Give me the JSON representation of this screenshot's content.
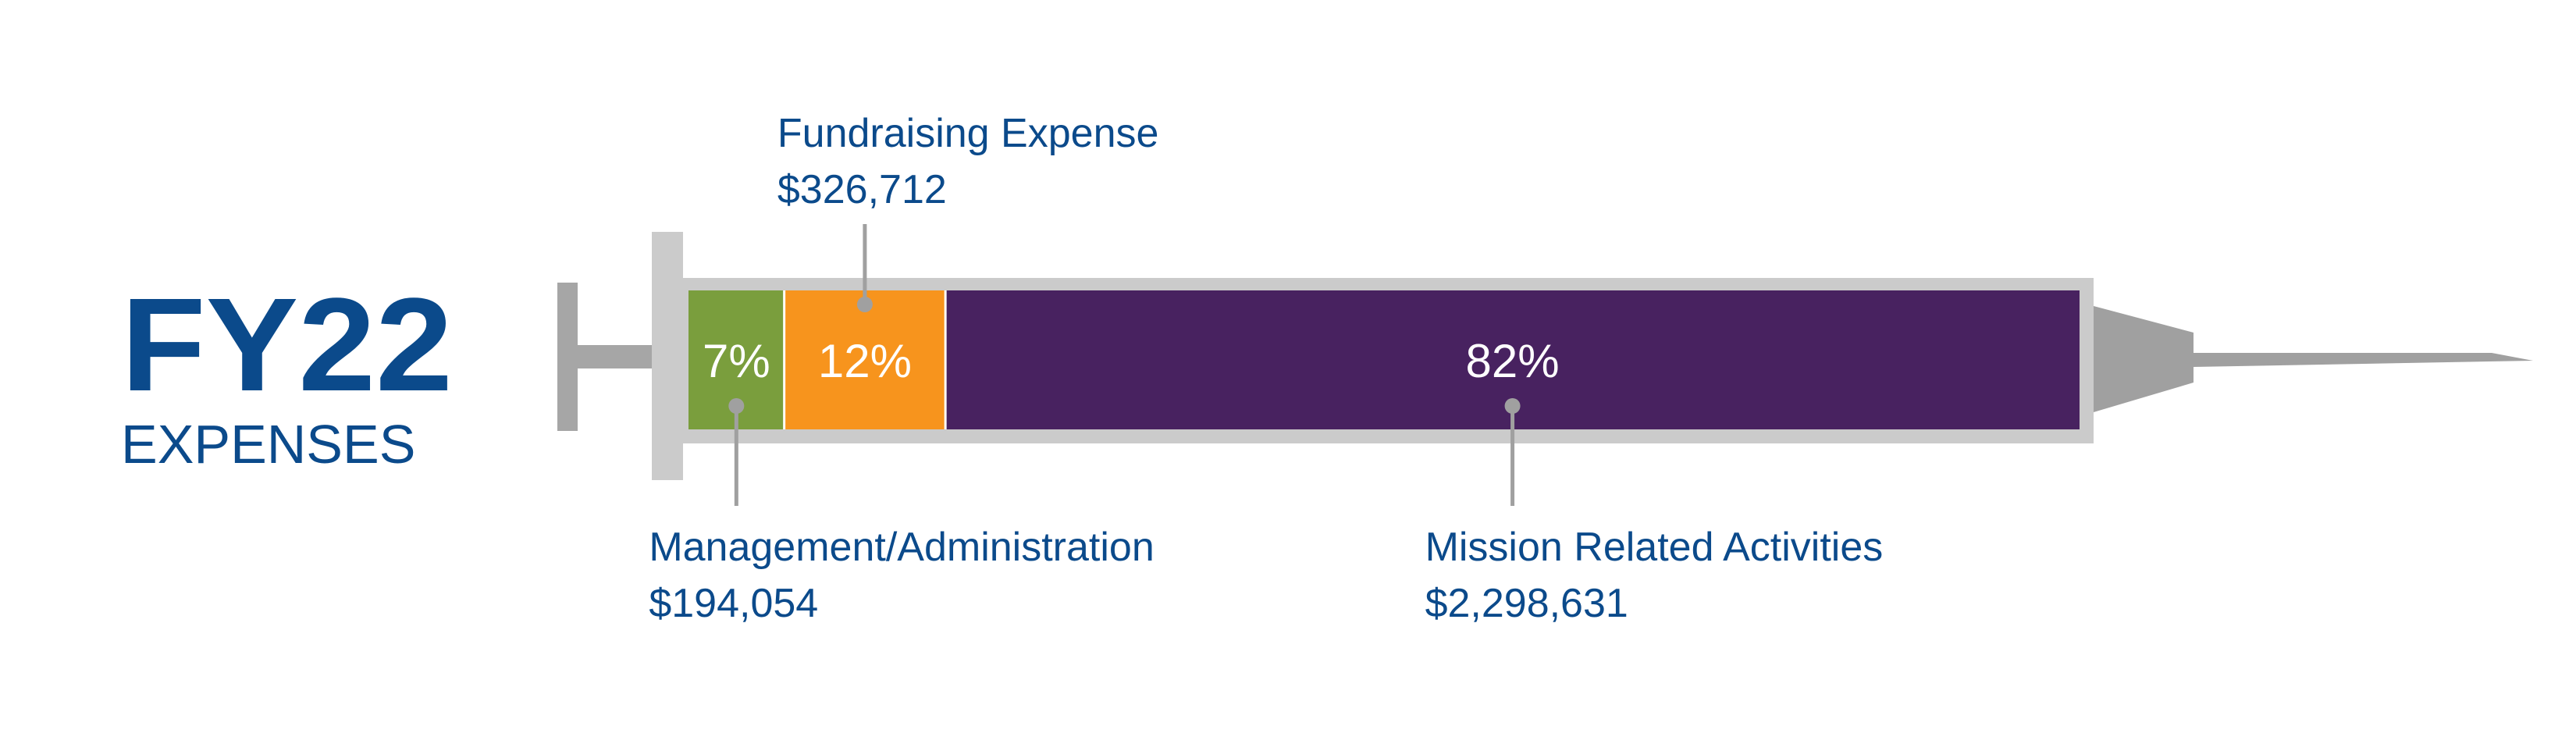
{
  "heading": {
    "year": "FY22",
    "subtitle": "EXPENSES",
    "color": "#0b4a8b"
  },
  "chart_data": {
    "type": "bar",
    "orientation": "horizontal-stacked",
    "title": "FY22",
    "subtitle": "EXPENSES",
    "series": [
      {
        "name": "Management/Administration",
        "amount": "$194,054",
        "value": 194054,
        "percent": 7,
        "percent_label": "7%",
        "color": "#7a9e3d",
        "label_position": "below"
      },
      {
        "name": "Fundraising Expense",
        "amount": "$326,712",
        "value": 326712,
        "percent": 12,
        "percent_label": "12%",
        "color": "#f7941d",
        "label_position": "above"
      },
      {
        "name": "Mission Related Activities",
        "amount": "$2,298,631",
        "value": 2298631,
        "percent": 82,
        "percent_label": "82%",
        "color": "#482260",
        "label_position": "below"
      }
    ]
  },
  "colors": {
    "syringe_body": "#cbcbcb",
    "syringe_plunger": "#a6a6a6",
    "syringe_needle": "#a0a0a0",
    "leader": "#a0a0a0",
    "label_text": "#0b4a8b",
    "percent_text": "#ffffff"
  }
}
